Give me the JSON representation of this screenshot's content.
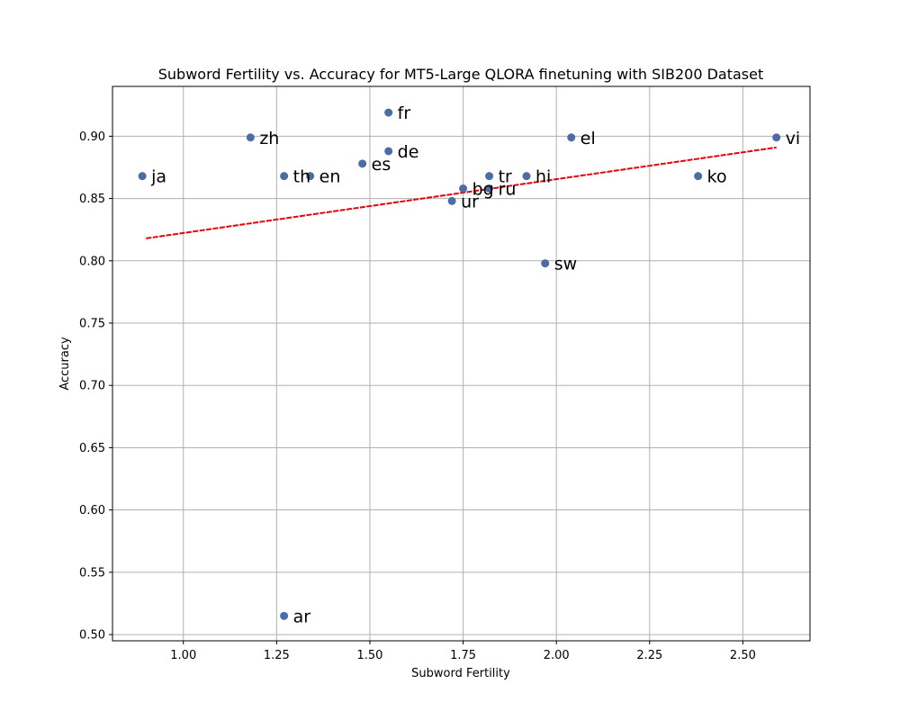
{
  "chart_data": {
    "type": "scatter",
    "title": "Subword Fertility vs. Accuracy for MT5-Large QLORA finetuning with SIB200 Dataset",
    "xlabel": "Subword Fertility",
    "ylabel": "Accuracy",
    "xlim": [
      0.81,
      2.68
    ],
    "ylim": [
      0.495,
      0.94
    ],
    "xticks": [
      "1.00",
      "1.25",
      "1.50",
      "1.75",
      "2.00",
      "2.25",
      "2.50"
    ],
    "yticks": [
      "0.50",
      "0.55",
      "0.60",
      "0.65",
      "0.70",
      "0.75",
      "0.80",
      "0.85",
      "0.90"
    ],
    "grid": true,
    "point_color": "#4c6ca4",
    "trend_color": "#e8000b",
    "points": [
      {
        "label": "ja",
        "x": 0.89,
        "y": 0.868
      },
      {
        "label": "zh",
        "x": 1.18,
        "y": 0.899
      },
      {
        "label": "th",
        "x": 1.27,
        "y": 0.868
      },
      {
        "label": "ar",
        "x": 1.27,
        "y": 0.515
      },
      {
        "label": "en",
        "x": 1.34,
        "y": 0.868
      },
      {
        "label": "es",
        "x": 1.48,
        "y": 0.878
      },
      {
        "label": "de",
        "x": 1.55,
        "y": 0.888
      },
      {
        "label": "fr",
        "x": 1.55,
        "y": 0.919
      },
      {
        "label": "ur",
        "x": 1.72,
        "y": 0.848
      },
      {
        "label": "bg",
        "x": 1.75,
        "y": 0.858
      },
      {
        "label": "ru",
        "x": 1.82,
        "y": 0.858
      },
      {
        "label": "tr",
        "x": 1.82,
        "y": 0.868
      },
      {
        "label": "hi",
        "x": 1.92,
        "y": 0.868
      },
      {
        "label": "sw",
        "x": 1.97,
        "y": 0.798
      },
      {
        "label": "el",
        "x": 2.04,
        "y": 0.899
      },
      {
        "label": "ko",
        "x": 2.38,
        "y": 0.868
      },
      {
        "label": "vi",
        "x": 2.59,
        "y": 0.899
      }
    ],
    "trend_line": {
      "x": [
        0.9,
        2.59
      ],
      "y": [
        0.818,
        0.891
      ]
    }
  }
}
